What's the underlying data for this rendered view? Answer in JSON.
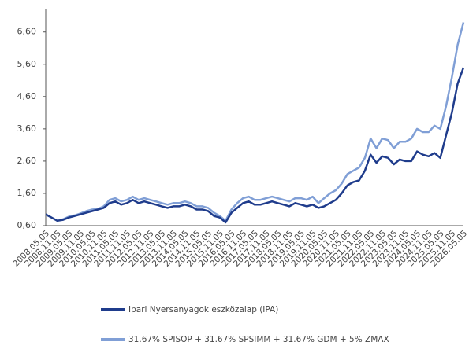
{
  "chart_data": {
    "type": "line",
    "categories": [
      "2008.05.05",
      null,
      "2008.11.05",
      null,
      "2009.05.05",
      null,
      "2009.11.05",
      null,
      "2010.05.05",
      null,
      "2010.11.05",
      null,
      "2011.05.05",
      null,
      "2011.11.05",
      null,
      "2012.05.05",
      null,
      "2012.11.05",
      null,
      "2013.05.05",
      null,
      "2013.11.05",
      null,
      "2014.05.05",
      null,
      "2014.11.05",
      null,
      "2015.05.05",
      null,
      "2015.11.05",
      null,
      "2016.05.05",
      null,
      "2016.11.05",
      null,
      "2017.05.05",
      null,
      "2017.11.05",
      null,
      "2018.05.05",
      null,
      "2018.11.05",
      null,
      "2019.05.05",
      null,
      "2019.11.05",
      null,
      "2020.05.05",
      null,
      "2020.11.05",
      null,
      "2021.05.05",
      null,
      "2021.11.05",
      null,
      "2022.05.05",
      null,
      "2022.11.05",
      null,
      "2023.05.05",
      null,
      "2023.11.05",
      null,
      "2024.05.05",
      null,
      "2024.11.05",
      null,
      "2025.05.05",
      null,
      "2025.11.05",
      null,
      "2026.05.05"
    ],
    "series": [
      {
        "name": "Ipari Nyersanyagok eszközalap (IPA)",
        "color": "#1f3c8c",
        "values": [
          0.95,
          0.85,
          0.75,
          0.78,
          0.85,
          0.9,
          0.95,
          1.0,
          1.05,
          1.1,
          1.15,
          1.3,
          1.35,
          1.25,
          1.3,
          1.4,
          1.3,
          1.35,
          1.3,
          1.25,
          1.2,
          1.15,
          1.2,
          1.2,
          1.25,
          1.2,
          1.1,
          1.1,
          1.05,
          0.9,
          0.85,
          0.7,
          1.0,
          1.15,
          1.3,
          1.35,
          1.25,
          1.25,
          1.3,
          1.35,
          1.3,
          1.25,
          1.2,
          1.3,
          1.25,
          1.2,
          1.25,
          1.15,
          1.2,
          1.3,
          1.4,
          1.6,
          1.85,
          1.95,
          2.0,
          2.3,
          2.8,
          2.55,
          2.75,
          2.7,
          2.5,
          2.65,
          2.6,
          2.6,
          2.9,
          2.8,
          2.75,
          2.85,
          2.7,
          3.4,
          4.1,
          5.0,
          5.5
        ]
      },
      {
        "name": "31.67% SPISOP + 31.67% SPSIMM + 31.67% GDM + 5% ZMAX",
        "color": "#809fd6",
        "values": [
          0.95,
          0.85,
          0.75,
          0.8,
          0.88,
          0.92,
          0.98,
          1.05,
          1.1,
          1.12,
          1.2,
          1.4,
          1.45,
          1.35,
          1.4,
          1.5,
          1.4,
          1.45,
          1.4,
          1.35,
          1.3,
          1.25,
          1.3,
          1.3,
          1.35,
          1.3,
          1.2,
          1.2,
          1.15,
          1.0,
          0.9,
          0.75,
          1.1,
          1.3,
          1.45,
          1.5,
          1.4,
          1.4,
          1.45,
          1.5,
          1.45,
          1.4,
          1.35,
          1.45,
          1.45,
          1.4,
          1.5,
          1.3,
          1.45,
          1.6,
          1.7,
          1.9,
          2.2,
          2.3,
          2.4,
          2.7,
          3.3,
          3.0,
          3.3,
          3.25,
          3.0,
          3.2,
          3.2,
          3.3,
          3.6,
          3.5,
          3.5,
          3.7,
          3.6,
          4.3,
          5.2,
          6.2,
          6.9
        ]
      }
    ],
    "ylim": [
      0.6,
      7.3
    ],
    "yticks": [
      {
        "value": 0.6,
        "label": "0,60"
      },
      {
        "value": 1.6,
        "label": "1,60"
      },
      {
        "value": 2.6,
        "label": "2,60"
      },
      {
        "value": 3.6,
        "label": "3,60"
      },
      {
        "value": 4.6,
        "label": "4,60"
      },
      {
        "value": 5.6,
        "label": "5,60"
      },
      {
        "value": 6.6,
        "label": "6,60"
      }
    ],
    "grid": false
  }
}
